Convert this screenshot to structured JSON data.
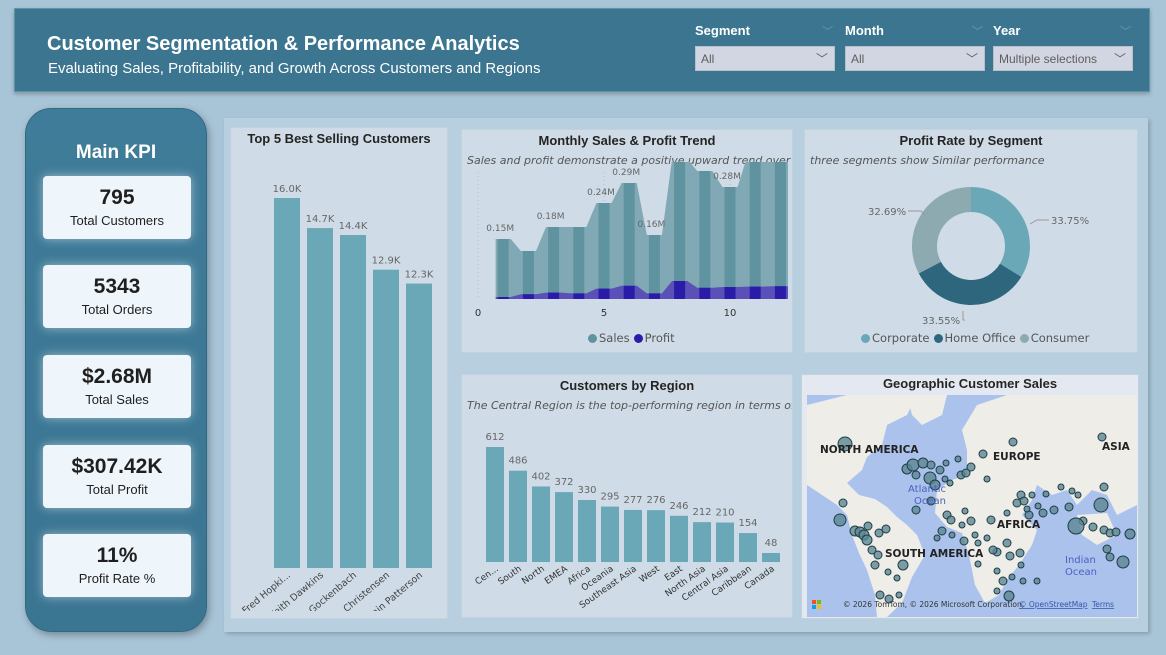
{
  "header": {
    "title": "Customer Segmentation & Performance Analytics",
    "subtitle": "Evaluating Sales, Profitability, and Growth Across Customers and Regions"
  },
  "slicers": [
    {
      "label": "Segment",
      "value": "All"
    },
    {
      "label": "Month",
      "value": "All"
    },
    {
      "label": "Year",
      "value": "Multiple selections"
    }
  ],
  "kpi": {
    "title": "Main KPI",
    "cards": [
      {
        "value": "795",
        "label": "Total Customers"
      },
      {
        "value": "5343",
        "label": "Total Orders"
      },
      {
        "value": "$2.68M",
        "label": "Total Sales"
      },
      {
        "value": "$307.42K",
        "label": "Total Profit"
      },
      {
        "value": "11%",
        "label": "Profit Rate %"
      }
    ]
  },
  "colors": {
    "bar": "#6aa8b7",
    "sales": "#5f939f",
    "sales_area": "#80a9b5",
    "profit": "#2a1ca8",
    "corporate": "#6aa8b7",
    "home_office": "#2e667d",
    "consumer": "#8daab1"
  },
  "chart_data": [
    {
      "type": "bar",
      "title": "Top 5 Best Selling Customers",
      "categories": [
        "Fred Hopki...",
        "Keith Dawkins",
        "Mike Gockenbach",
        "Sean Christensen",
        "Benjamin Patterson"
      ],
      "values": [
        16.0,
        14.7,
        14.4,
        12.9,
        12.3
      ],
      "labels": [
        "16.0K",
        "14.7K",
        "14.4K",
        "12.9K",
        "12.3K"
      ],
      "ylim": [
        0,
        16.0
      ]
    },
    {
      "type": "area",
      "title": "Monthly Sales & Profit Trend",
      "subtitle": "Sales and profit demonstrate a positive upward trend over ti...",
      "x": [
        1,
        2,
        3,
        4,
        5,
        6,
        7,
        8,
        9,
        10,
        11,
        12
      ],
      "series": [
        {
          "name": "Sales",
          "values": [
            0.15,
            0.12,
            0.18,
            0.18,
            0.24,
            0.29,
            0.16,
            0.35,
            0.32,
            0.28,
            0.36,
            0.38
          ],
          "labels": [
            "0.15M",
            "",
            "0.18M",
            "",
            "0.24M",
            "0.29M",
            "0.16M",
            "0.35M",
            "",
            "0.28M",
            "0.36M",
            ""
          ]
        },
        {
          "name": "Profit",
          "values": [
            0.005,
            0.012,
            0.016,
            0.014,
            0.026,
            0.033,
            0.014,
            0.045,
            0.028,
            0.03,
            0.031,
            0.032
          ]
        }
      ],
      "xticks": [
        "0",
        "5",
        "10"
      ],
      "xlim": [
        0,
        12.3
      ]
    },
    {
      "type": "pie",
      "title": "Profit Rate by Segment",
      "subtitle": "three segments show Similar performance",
      "categories": [
        "Corporate",
        "Home Office",
        "Consumer"
      ],
      "values": [
        33.75,
        33.55,
        32.69
      ],
      "labels": [
        "33.75%",
        "33.55%",
        "32.69%"
      ]
    },
    {
      "type": "bar",
      "title": "Customers by Region",
      "subtitle": "The Central Region is the top-performing region in terms of ...",
      "categories": [
        "Cen...",
        "South",
        "North",
        "EMEA",
        "Africa",
        "Oceania",
        "Southeast Asia",
        "West",
        "East",
        "North Asia",
        "Central Asia",
        "Caribbean",
        "Canada"
      ],
      "values": [
        612,
        486,
        402,
        372,
        330,
        295,
        277,
        276,
        246,
        212,
        210,
        154,
        48
      ]
    }
  ],
  "map": {
    "title": "Geographic Customer Sales",
    "regions": [
      "NORTH AMERICA",
      "EUROPE",
      "ASIA",
      "AFRICA",
      "SOUTH AMERICA"
    ],
    "oceans": [
      "Atlantic Ocean",
      "Indian Ocean"
    ],
    "attribution": "© 2026 TomTom, © 2026 Microsoft Corporation,",
    "osm_link": "© OpenStreetMap",
    "terms_link": "Terms",
    "logo": "Microsoft"
  }
}
